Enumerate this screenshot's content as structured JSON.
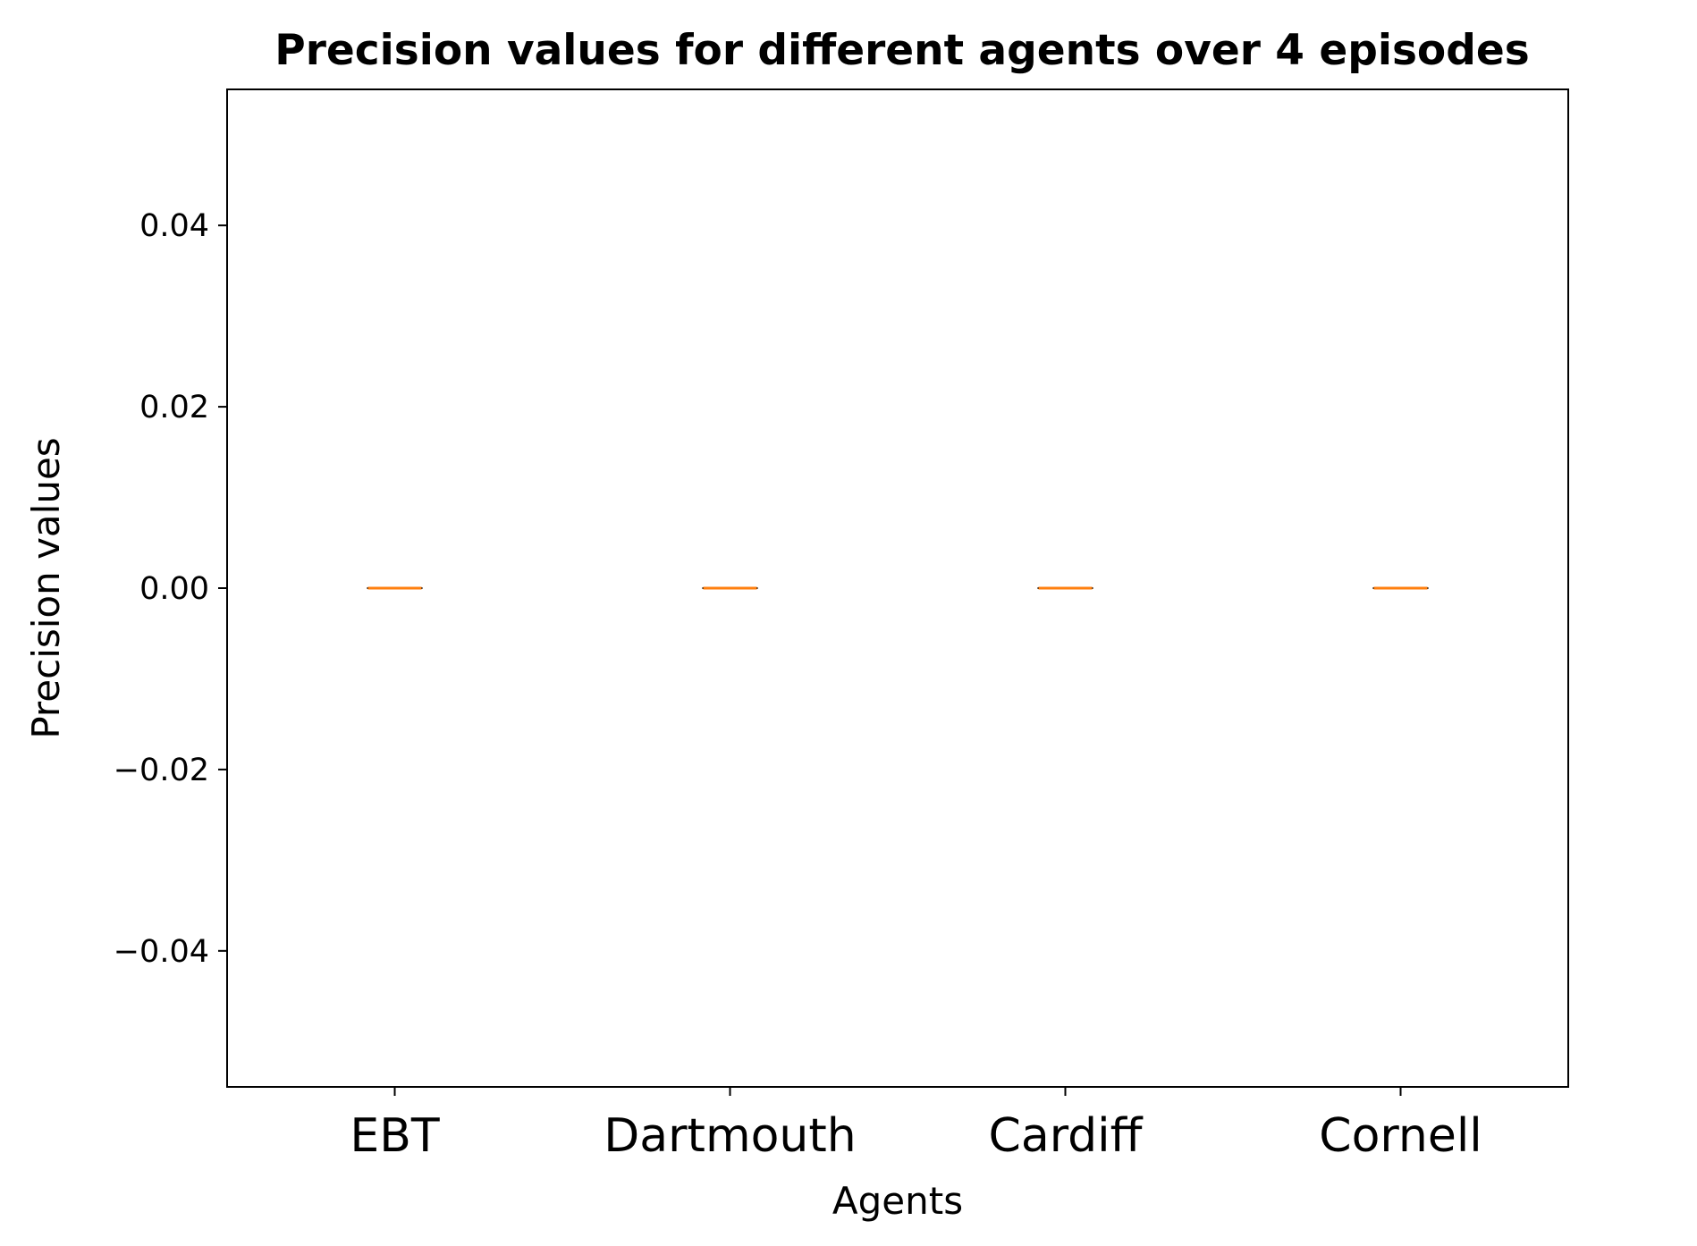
{
  "chart_data": {
    "type": "box",
    "title": "Precision values for different agents over 4 episodes",
    "xlabel": "Agents",
    "ylabel": "Precision values",
    "categories": [
      "EBT",
      "Dartmouth",
      "Cardiff",
      "Cornell"
    ],
    "series": [
      {
        "values": [
          {
            "min": 0,
            "q1": 0,
            "median": 0,
            "q3": 0,
            "max": 0
          },
          {
            "min": 0,
            "q1": 0,
            "median": 0,
            "q3": 0,
            "max": 0
          },
          {
            "min": 0,
            "q1": 0,
            "median": 0,
            "q3": 0,
            "max": 0
          },
          {
            "min": 0,
            "q1": 0,
            "median": 0,
            "q3": 0,
            "max": 0
          }
        ]
      }
    ],
    "ylim": [
      -0.055,
      0.055
    ],
    "yticks": [
      -0.04,
      -0.02,
      0.0,
      0.02,
      0.04
    ],
    "ytick_labels": [
      "−0.04",
      "−0.02",
      "0.00",
      "0.02",
      "0.04"
    ],
    "grid": false,
    "legend": "none",
    "colors": {
      "median": "#ff7f0e",
      "box": "#000000",
      "axes": "#000000"
    }
  }
}
